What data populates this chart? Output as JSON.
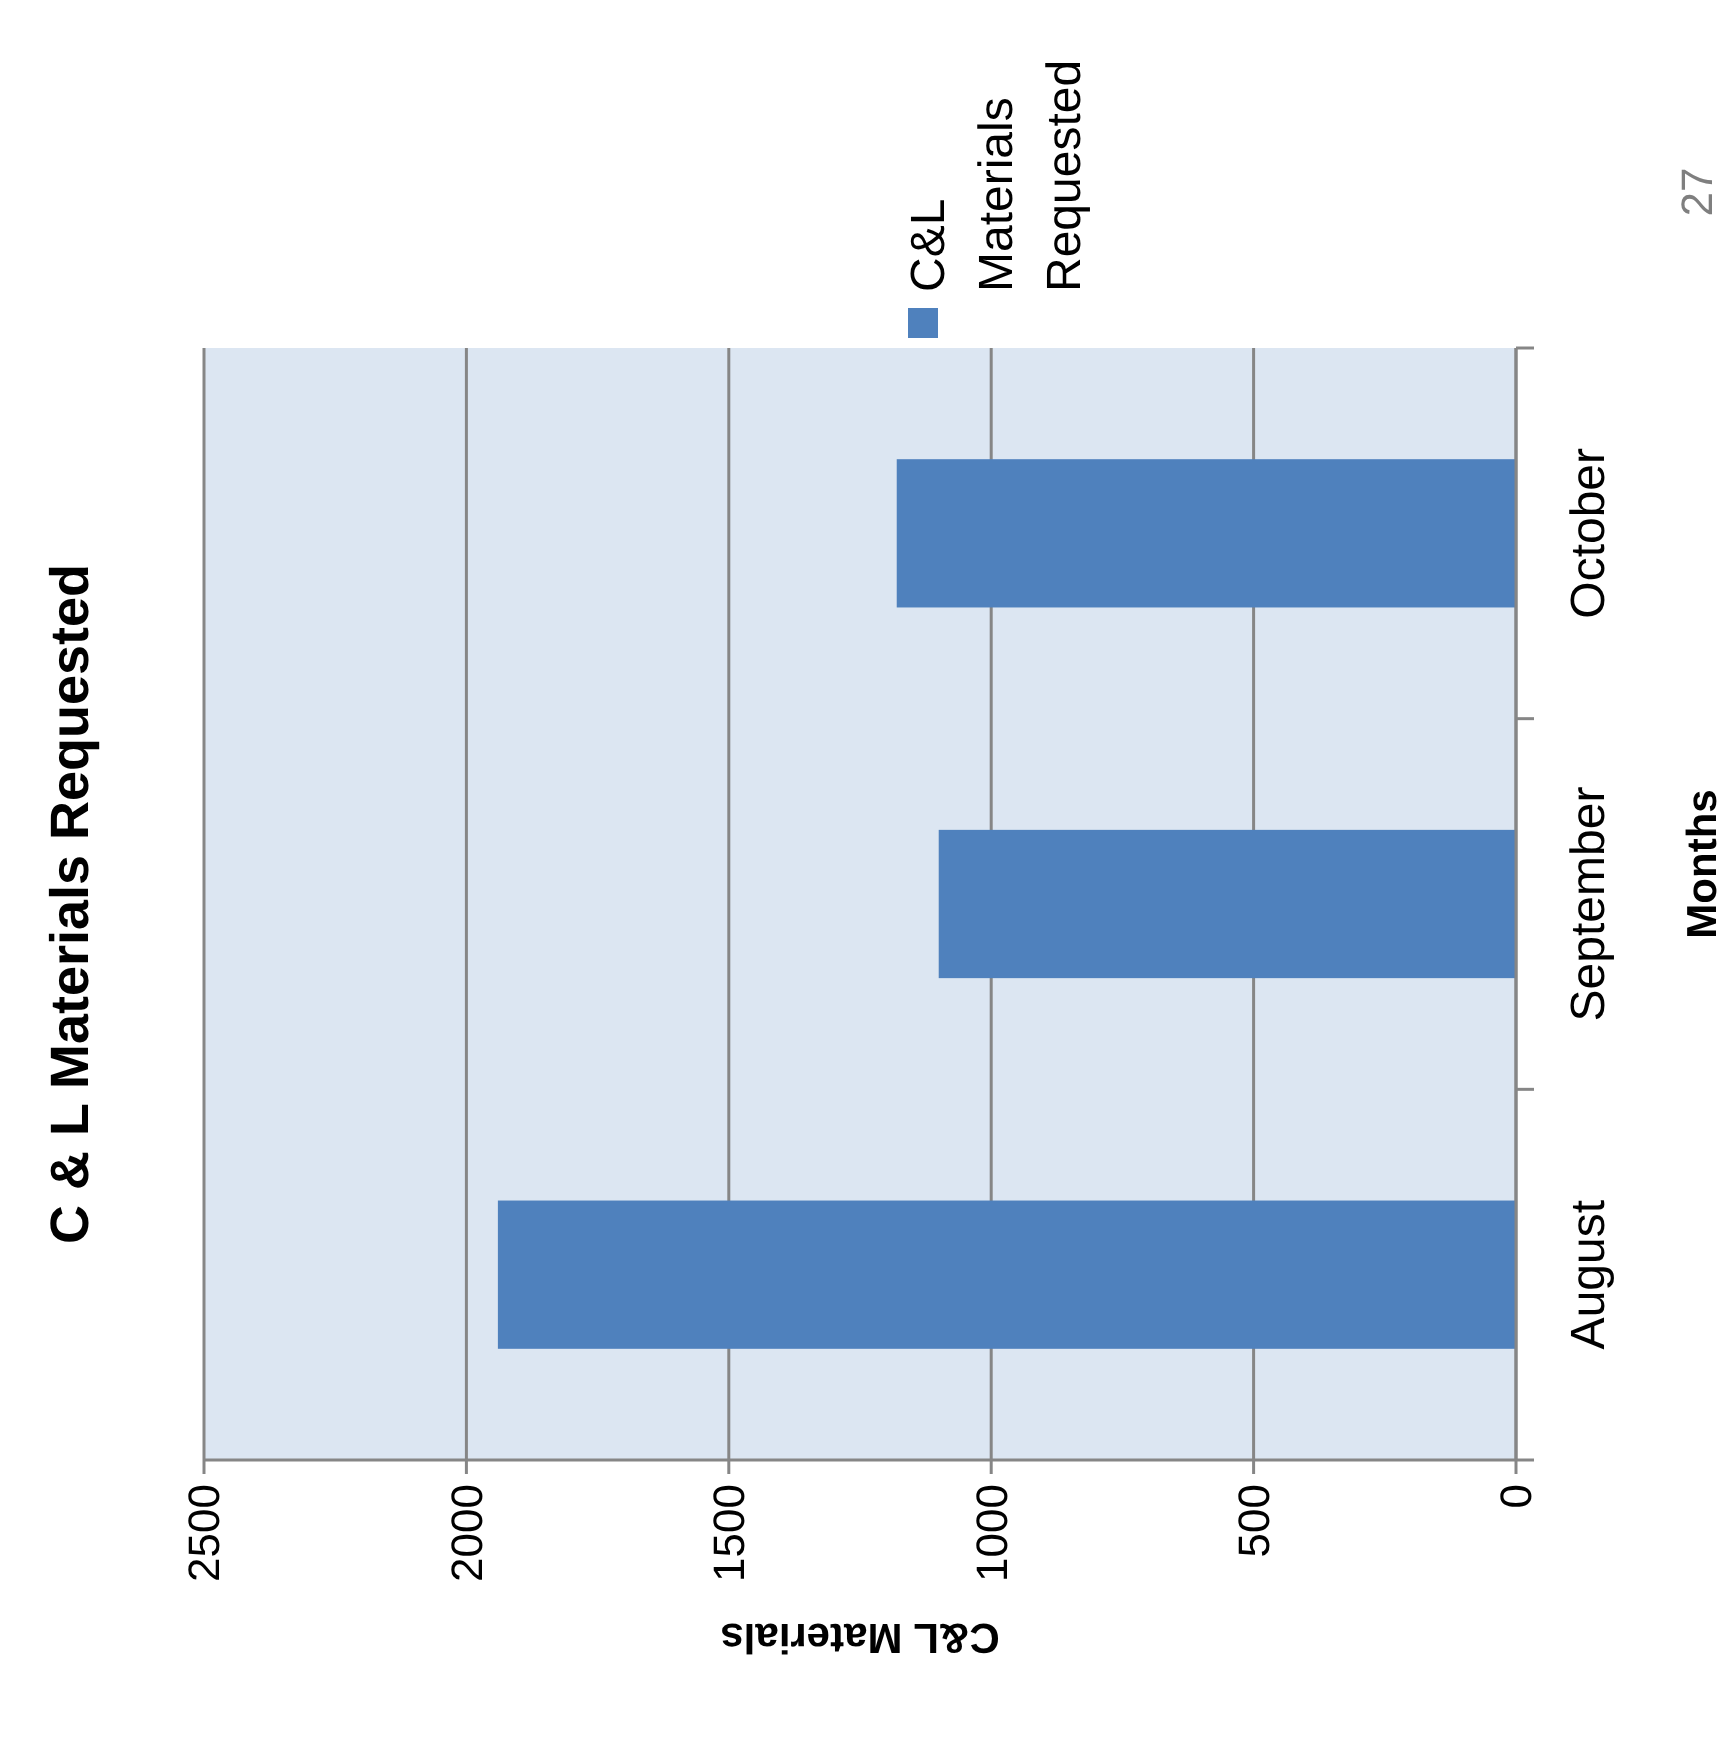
{
  "chart_data": {
    "type": "bar",
    "orientation": "horizontal",
    "title": "C & L Materials Requested",
    "xlabel": "C&L Materials",
    "ylabel": "Months",
    "categories": [
      "October",
      "September",
      "August"
    ],
    "series": [
      {
        "name": "C&L Materials Requested",
        "color": "#4f81bd",
        "values": [
          1180,
          1100,
          1940
        ]
      }
    ],
    "xlim": [
      2500,
      0
    ],
    "xticks": [
      2500,
      2000,
      1500,
      1000,
      500,
      0
    ],
    "grid": "x",
    "legend": "top right",
    "annotations": [
      "27"
    ]
  }
}
